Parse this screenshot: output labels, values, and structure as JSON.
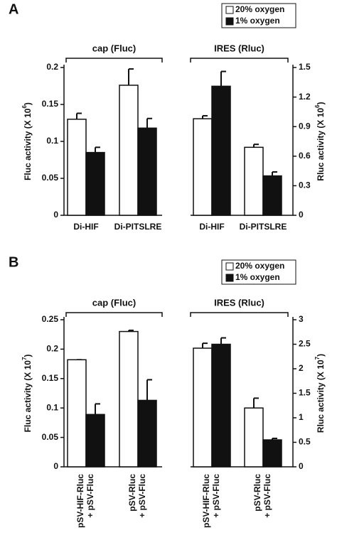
{
  "chart_data": [
    {
      "type": "bar",
      "panel": "A",
      "legend": [
        {
          "name": "20% oxygen",
          "color": "#ffffff"
        },
        {
          "name": "1% oxygen",
          "color": "#111111"
        }
      ],
      "ylabel": [
        "Fluc activity (X 10",
        "6",
        ")"
      ],
      "y2label": [
        "Rluc activity (X 10",
        "6",
        ")"
      ],
      "ylim": [
        0,
        0.2
      ],
      "yticks": [
        0,
        0.05,
        0.1,
        0.15,
        0.2
      ],
      "y2lim": [
        0,
        1.5
      ],
      "y2ticks": [
        0,
        0.3,
        0.6,
        0.9,
        1.2,
        1.5
      ],
      "groups": [
        {
          "label": "cap (Fluc)",
          "axis": "y",
          "categories": [
            [
              "Di-HIF"
            ],
            [
              "Di-PITSLRE"
            ]
          ],
          "series": [
            {
              "values": [
                0.13,
                0.176
              ],
              "errors": [
                0.008,
                0.022
              ]
            },
            {
              "values": [
                0.085,
                0.118
              ],
              "errors": [
                0.007,
                0.013
              ]
            }
          ]
        },
        {
          "label": "IRES (Rluc)",
          "axis": "y2",
          "categories": [
            [
              "Di-HIF"
            ],
            [
              "Di-PITSLRE"
            ]
          ],
          "series": [
            {
              "values": [
                0.98,
                0.69
              ],
              "errors": [
                0.03,
                0.03
              ]
            },
            {
              "values": [
                1.31,
                0.4
              ],
              "errors": [
                0.15,
                0.04
              ]
            }
          ]
        }
      ]
    },
    {
      "type": "bar",
      "panel": "B",
      "legend": [
        {
          "name": "20% oxygen",
          "color": "#ffffff"
        },
        {
          "name": "1% oxygen",
          "color": "#111111"
        }
      ],
      "ylabel": [
        "Fluc activity (X 10",
        "7",
        ")"
      ],
      "y2label": [
        "Rluc activity (X 10",
        "7",
        ")"
      ],
      "ylim": [
        0,
        0.25
      ],
      "yticks": [
        0,
        0.05,
        0.1,
        0.15,
        0.2,
        0.25
      ],
      "y2lim": [
        0,
        3
      ],
      "y2ticks": [
        0,
        0.5,
        1,
        1.5,
        2,
        2.5,
        3
      ],
      "groups": [
        {
          "label": "cap (Fluc)",
          "axis": "y",
          "categories": [
            [
              "pSV-HIF-Rluc",
              "+ pSV-Fluc"
            ],
            [
              "pSV-Rluc",
              "+ pSV-Fluc"
            ]
          ],
          "series": [
            {
              "values": [
                0.182,
                0.23
              ],
              "errors": [
                0,
                0.002
              ]
            },
            {
              "values": [
                0.089,
                0.113
              ],
              "errors": [
                0.018,
                0.035
              ]
            }
          ]
        },
        {
          "label": "IRES (Rluc)",
          "axis": "y2",
          "categories": [
            [
              "pSV-HIF-Rluc",
              "+ pSV-Fluc"
            ],
            [
              "pSV-Rluc",
              "+ pSV-Fluc"
            ]
          ],
          "series": [
            {
              "values": [
                2.42,
                1.2
              ],
              "errors": [
                0.1,
                0.2
              ]
            },
            {
              "values": [
                2.5,
                0.55
              ],
              "errors": [
                0.13,
                0.03
              ]
            }
          ]
        }
      ]
    }
  ]
}
